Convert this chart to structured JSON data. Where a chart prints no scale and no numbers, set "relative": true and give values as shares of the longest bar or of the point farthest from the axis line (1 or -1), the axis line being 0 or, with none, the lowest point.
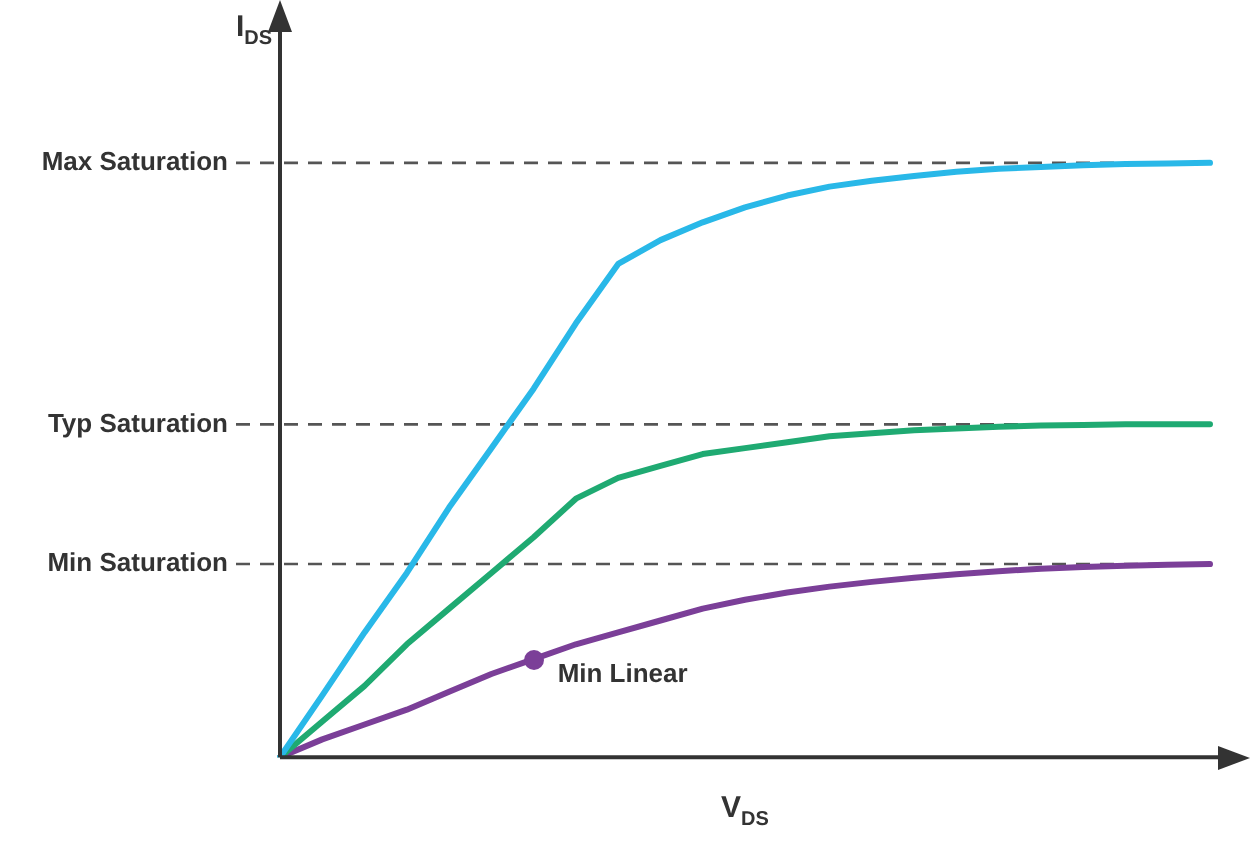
{
  "chart_data": {
    "type": "line",
    "relative": true,
    "xlabel": "V$_{DS}$",
    "ylabel": "I$_{DS}$",
    "categories": [
      null,
      null,
      null,
      null,
      null,
      null,
      null,
      null,
      null,
      null,
      null,
      null,
      null,
      null,
      null,
      null,
      null,
      null,
      null,
      null,
      null,
      null,
      null
    ],
    "series": [
      {
        "color": "#29b8e8",
        "values": [
          0,
          0.104,
          0.21,
          0.31,
          0.42,
          0.52,
          0.62,
          0.73,
          0.83,
          0.87,
          0.9,
          0.925,
          0.945,
          0.96,
          0.97,
          0.978,
          0.985,
          0.99,
          0.993,
          0.996,
          0.998,
          0.999,
          1
        ]
      },
      {
        "color": "#1faa72",
        "values": [
          0,
          0.06,
          0.12,
          0.19,
          0.25,
          0.31,
          0.37,
          0.435,
          0.47,
          0.49,
          0.51,
          0.52,
          0.53,
          0.54,
          0.545,
          0.55,
          0.553,
          0.556,
          0.558,
          0.559,
          0.56,
          0.56,
          0.56
        ]
      },
      {
        "color": "#7b3f98",
        "values": [
          0,
          0.03,
          0.055,
          0.08,
          0.11,
          0.14,
          0.165,
          0.19,
          0.21,
          0.23,
          0.25,
          0.265,
          0.277,
          0.287,
          0.295,
          0.302,
          0.308,
          0.313,
          0.317,
          0.32,
          0.322,
          0.324,
          0.325
        ]
      }
    ],
    "ref_lines": [
      {
        "axis": "y",
        "value": 1,
        "label": "Max Saturation",
        "color": "#555555",
        "line_style": "dashed"
      },
      {
        "axis": "y",
        "value": 0.56,
        "label": "Typ Saturation",
        "color": "#555555",
        "line_style": "dashed"
      },
      {
        "axis": "y",
        "value": 0.325,
        "label": "Min Saturation",
        "color": "#555555",
        "line_style": "dashed"
      }
    ],
    "annotations": [
      "Min Linear"
    ],
    "marker": "none",
    "line_style": "solid",
    "grid": false,
    "legend": false
  }
}
